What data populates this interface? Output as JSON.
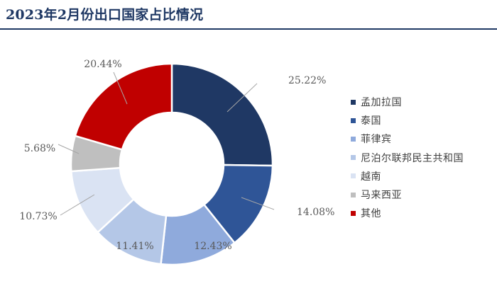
{
  "title": "2023年2月份出口国家占比情况",
  "chart_data": {
    "type": "pie",
    "variant": "donut",
    "start_angle_deg": 0,
    "direction": "clockwise",
    "legend_position": "right",
    "categories": [
      "孟加拉国",
      "泰国",
      "菲律宾",
      "尼泊尔联邦民主共和国",
      "越南",
      "马来西亚",
      "其他"
    ],
    "values": [
      25.22,
      14.08,
      12.43,
      11.41,
      10.73,
      5.68,
      20.44
    ],
    "labels": [
      "25.22%",
      "14.08%",
      "12.43%",
      "11.41%",
      "10.73%",
      "5.68%",
      "20.44%"
    ],
    "colors": [
      "#1f3864",
      "#2f5597",
      "#8faadc",
      "#b4c7e7",
      "#dae3f3",
      "#bfbfbf",
      "#c00000"
    ]
  }
}
